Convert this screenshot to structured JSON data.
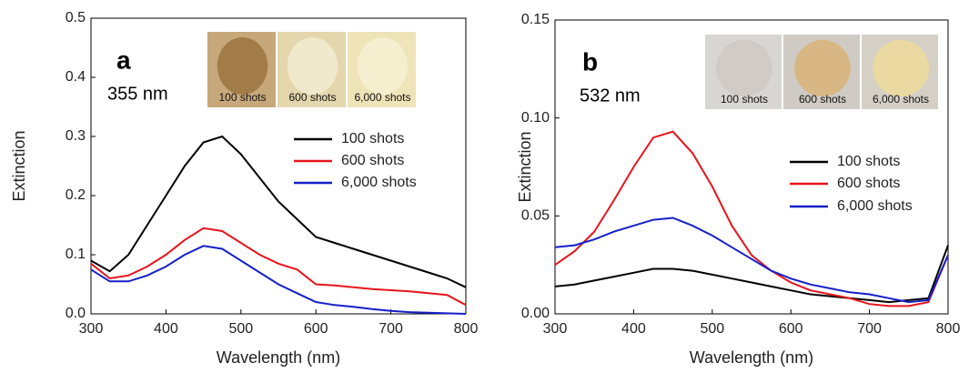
{
  "chart_data": [
    {
      "type": "line",
      "annotations": [
        "a",
        "355 nm"
      ],
      "inset_labels": [
        "100 shots",
        "600 shots",
        "6,000 shots"
      ],
      "x_label": "Wavelength (nm)",
      "y_label": "Extinction",
      "x": [
        300,
        325,
        350,
        375,
        400,
        425,
        450,
        475,
        500,
        525,
        550,
        575,
        600,
        625,
        650,
        675,
        700,
        725,
        750,
        775,
        800
      ],
      "series": [
        {
          "name": "100 shots",
          "color": "#000000",
          "values": [
            0.09,
            0.072,
            0.1,
            0.15,
            0.2,
            0.25,
            0.29,
            0.3,
            0.27,
            0.23,
            0.19,
            0.16,
            0.13,
            0.12,
            0.11,
            0.1,
            0.09,
            0.08,
            0.07,
            0.06,
            0.045
          ]
        },
        {
          "name": "600 shots",
          "color": "#e8141c",
          "values": [
            0.085,
            0.06,
            0.065,
            0.08,
            0.1,
            0.125,
            0.145,
            0.14,
            0.12,
            0.1,
            0.085,
            0.075,
            0.05,
            0.048,
            0.045,
            0.042,
            0.04,
            0.038,
            0.035,
            0.032,
            0.015
          ]
        },
        {
          "name": "6,000 shots",
          "color": "#1420c8",
          "values": [
            0.075,
            0.055,
            0.055,
            0.065,
            0.08,
            0.1,
            0.115,
            0.11,
            0.09,
            0.07,
            0.05,
            0.035,
            0.02,
            0.015,
            0.012,
            0.008,
            0.005,
            0.003,
            0.002,
            0.001,
            0.0
          ]
        }
      ],
      "xlim": [
        300,
        800
      ],
      "xticks": [
        300,
        400,
        500,
        600,
        700,
        800
      ],
      "ylim": [
        0,
        0.5
      ],
      "yticks": [
        {
          "value": 0,
          "label": "0.0"
        },
        0.1,
        0.2,
        0.3,
        0.4,
        0.5
      ]
    },
    {
      "type": "line",
      "annotations": [
        "b",
        "532 nm"
      ],
      "inset_labels": [
        "100 shots",
        "600 shots",
        "6,000 shots"
      ],
      "x_label": "Wavelength (nm)",
      "y_label": "Extinction",
      "x": [
        300,
        325,
        350,
        375,
        400,
        425,
        450,
        475,
        500,
        525,
        550,
        575,
        600,
        625,
        650,
        675,
        700,
        725,
        750,
        775,
        800
      ],
      "series": [
        {
          "name": "100 shots",
          "color": "#000000",
          "values": [
            0.014,
            0.015,
            0.017,
            0.019,
            0.021,
            0.023,
            0.023,
            0.022,
            0.02,
            0.018,
            0.016,
            0.014,
            0.012,
            0.01,
            0.009,
            0.008,
            0.007,
            0.006,
            0.007,
            0.008,
            0.035
          ]
        },
        {
          "name": "600 shots",
          "color": "#e8141c",
          "values": [
            0.025,
            0.032,
            0.042,
            0.058,
            0.075,
            0.09,
            0.093,
            0.082,
            0.065,
            0.045,
            0.03,
            0.022,
            0.016,
            0.012,
            0.01,
            0.008,
            0.005,
            0.004,
            0.004,
            0.006,
            0.03
          ]
        },
        {
          "name": "6,000 shots",
          "color": "#1420c8",
          "values": [
            0.034,
            0.035,
            0.038,
            0.042,
            0.045,
            0.048,
            0.049,
            0.045,
            0.04,
            0.034,
            0.028,
            0.022,
            0.018,
            0.015,
            0.013,
            0.011,
            0.01,
            0.008,
            0.006,
            0.007,
            0.03
          ]
        }
      ],
      "xlim": [
        300,
        800
      ],
      "xticks": [
        300,
        400,
        500,
        600,
        700,
        800
      ],
      "ylim": [
        0,
        0.15
      ],
      "yticks": [
        {
          "value": 0,
          "label": "0.00"
        },
        {
          "value": 0.05,
          "label": "0.05"
        },
        {
          "value": 0.1,
          "label": "0.10"
        },
        {
          "value": 0.15,
          "label": "0.15"
        }
      ]
    }
  ]
}
